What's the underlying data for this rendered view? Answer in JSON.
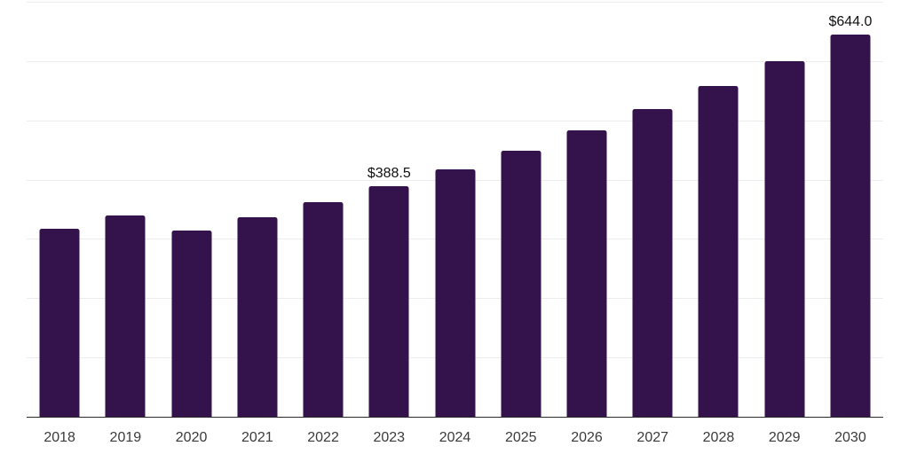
{
  "chart_data": {
    "type": "bar",
    "title": "",
    "xlabel": "",
    "ylabel": "",
    "categories": [
      "2018",
      "2019",
      "2020",
      "2021",
      "2022",
      "2023",
      "2024",
      "2025",
      "2026",
      "2027",
      "2028",
      "2029",
      "2030"
    ],
    "values": [
      317.0,
      340.0,
      314.0,
      337.0,
      361.5,
      388.5,
      417.6,
      448.9,
      482.5,
      518.7,
      557.5,
      599.3,
      644.0
    ],
    "bar_labels": [
      "",
      "",
      "",
      "",
      "",
      "$388.5",
      "",
      "",
      "",
      "",
      "",
      "",
      "$644.0"
    ],
    "ylim": [
      0,
      700
    ],
    "gridline_step": 100,
    "grid": "horizontal-only",
    "y_axis_tick_labels_visible": false,
    "legend": "none",
    "colors": {
      "bar": "#34124C",
      "axis": "#2B2B2B",
      "gridline": "#ECECEC",
      "tick_label": "#3A3A3A",
      "value_label": "#111111",
      "background": "#FFFFFF"
    }
  }
}
